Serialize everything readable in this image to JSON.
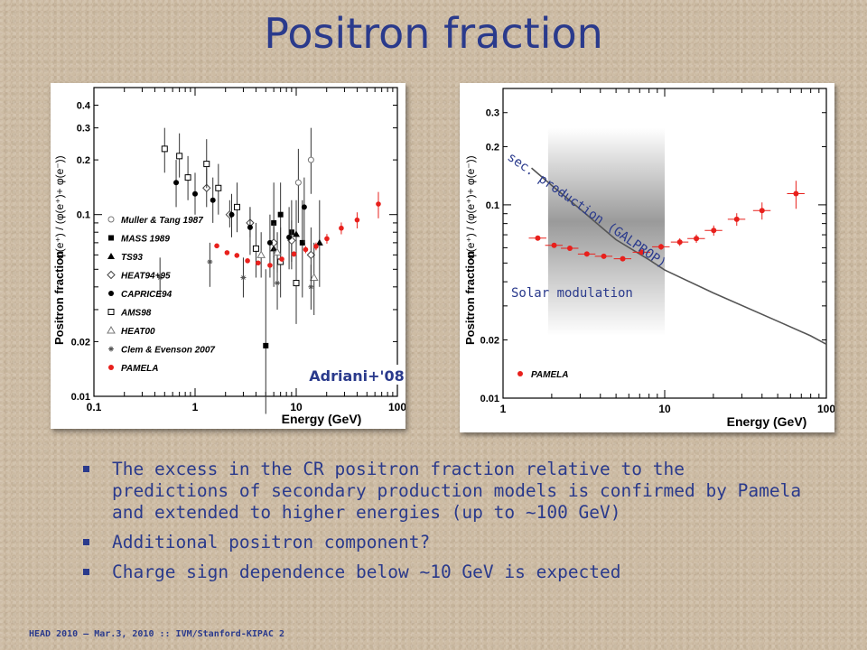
{
  "slide": {
    "title": "Positron fraction",
    "footer": "HEAD 2010 – Mar.3, 2010 :: IVM/Stanford-KIPAC 2",
    "bullets": [
      "The excess in the CR positron fraction relative to the predictions of secondary production models is confirmed by Pamela and extended to higher energies (up to ~100 GeV)",
      "Additional positron component?",
      "Charge sign dependence below ~10 GeV is expected"
    ]
  },
  "chart_data": [
    {
      "type": "scatter",
      "xlabel": "Energy (GeV)",
      "ylabel": "Positron fraction",
      "ylabel_formula": "φ(e⁺) / (φ(e⁺)+ φ(e⁻))",
      "xscale": "log",
      "yscale": "log",
      "xlim": [
        0.1,
        100
      ],
      "ylim": [
        0.01,
        0.5
      ],
      "xticks": [
        "0.1",
        "1",
        "10",
        "100"
      ],
      "yticks": [
        "0.01",
        "0.02",
        "0.1",
        "0.2",
        "0.3",
        "0.4"
      ],
      "annotation": "Adriani+'08",
      "legend_position": "left",
      "series": [
        {
          "name": "Muller & Tang 1987",
          "marker": "open-circle",
          "points": [
            [
              14,
              0.2,
              0.13,
              0.3
            ],
            [
              10.5,
              0.15,
              0.09,
              0.23
            ]
          ]
        },
        {
          "name": "MASS 1989",
          "marker": "filled-square",
          "points": [
            [
              5,
              0.019,
              0.008,
              0.05
            ],
            [
              6,
              0.09,
              0.05,
              0.15
            ],
            [
              7,
              0.1,
              0.06,
              0.15
            ],
            [
              9,
              0.08,
              0.05,
              0.12
            ],
            [
              11.5,
              0.07,
              0.035,
              0.12
            ]
          ]
        },
        {
          "name": "TS93",
          "marker": "filled-triangle",
          "points": [
            [
              6,
              0.065,
              0.04,
              0.09
            ],
            [
              10,
              0.078,
              0.05,
              0.12
            ],
            [
              17,
              0.07,
              0.04,
              0.12
            ]
          ]
        },
        {
          "name": "HEAT94+95",
          "marker": "open-diamond",
          "points": [
            [
              1.3,
              0.14,
              0.11,
              0.18
            ],
            [
              2.2,
              0.1,
              0.085,
              0.12
            ],
            [
              3.5,
              0.09,
              0.075,
              0.11
            ],
            [
              6,
              0.07,
              0.058,
              0.085
            ],
            [
              9,
              0.072,
              0.055,
              0.093
            ],
            [
              14,
              0.06,
              0.043,
              0.085
            ]
          ]
        },
        {
          "name": "CAPRICE94",
          "marker": "filled-circle",
          "points": [
            [
              0.65,
              0.15,
              0.11,
              0.2
            ],
            [
              1.0,
              0.13,
              0.1,
              0.17
            ],
            [
              1.5,
              0.12,
              0.09,
              0.16
            ],
            [
              2.3,
              0.1,
              0.075,
              0.13
            ],
            [
              3.5,
              0.085,
              0.06,
              0.11
            ],
            [
              5.5,
              0.07,
              0.045,
              0.1
            ],
            [
              8.5,
              0.075,
              0.05,
              0.11
            ],
            [
              12,
              0.11,
              0.07,
              0.16
            ]
          ]
        },
        {
          "name": "AMS98",
          "marker": "open-square",
          "points": [
            [
              0.5,
              0.23,
              0.17,
              0.3
            ],
            [
              0.7,
              0.21,
              0.16,
              0.28
            ],
            [
              0.85,
              0.16,
              0.12,
              0.21
            ],
            [
              1.3,
              0.19,
              0.14,
              0.26
            ],
            [
              1.7,
              0.14,
              0.1,
              0.19
            ],
            [
              2.6,
              0.11,
              0.08,
              0.15
            ],
            [
              4,
              0.065,
              0.045,
              0.09
            ],
            [
              7,
              0.055,
              0.035,
              0.085
            ],
            [
              10,
              0.042,
              0.025,
              0.07
            ]
          ]
        },
        {
          "name": "HEAT00",
          "marker": "open-triangle",
          "points": [
            [
              4.5,
              0.06,
              0.045,
              0.08
            ],
            [
              6.5,
              0.062,
              0.048,
              0.08
            ],
            [
              15,
              0.045,
              0.028,
              0.07
            ]
          ]
        },
        {
          "name": "Clem & Evenson 2007",
          "marker": "star",
          "points": [
            [
              0.45,
              0.045,
              0.035,
              0.058
            ],
            [
              1.4,
              0.055,
              0.04,
              0.07
            ],
            [
              3,
              0.045,
              0.035,
              0.058
            ],
            [
              6.5,
              0.042,
              0.03,
              0.055
            ],
            [
              14,
              0.04,
              0.03,
              0.053
            ]
          ]
        },
        {
          "name": "PAMELA",
          "marker": "filled-circle-red",
          "points": [
            [
              1.64,
              0.0673,
              0.0658,
              0.0688
            ],
            [
              2.07,
              0.0617,
              0.0605,
              0.0629
            ],
            [
              2.59,
              0.0596,
              0.0585,
              0.0607
            ],
            [
              3.3,
              0.0557,
              0.0546,
              0.0568
            ],
            [
              4.2,
              0.0542,
              0.0531,
              0.0553
            ],
            [
              5.5,
              0.0526,
              0.0512,
              0.054
            ],
            [
              7.2,
              0.0569,
              0.0551,
              0.0587
            ],
            [
              9.5,
              0.0607,
              0.0585,
              0.0629
            ],
            [
              12.4,
              0.0642,
              0.0613,
              0.0671
            ],
            [
              15.7,
              0.0669,
              0.0636,
              0.0702
            ],
            [
              20.1,
              0.0737,
              0.0692,
              0.0782
            ],
            [
              27.9,
              0.0842,
              0.0779,
              0.0905
            ],
            [
              40.0,
              0.0934,
              0.0839,
              0.1029
            ],
            [
              64.9,
              0.1143,
              0.0954,
              0.1332
            ]
          ]
        }
      ]
    },
    {
      "type": "scatter",
      "xlabel": "Energy (GeV)",
      "ylabel": "Positron fraction",
      "ylabel_formula": "φ(e⁺) / (φ(e⁺)+ φ(e⁻))",
      "xscale": "log",
      "yscale": "log",
      "xlim": [
        1,
        100
      ],
      "ylim": [
        0.01,
        0.4
      ],
      "xticks": [
        "1",
        "10",
        "100"
      ],
      "yticks": [
        "0.01",
        "0.02",
        "0.1",
        "0.2",
        "0.3"
      ],
      "legend_position": "bottom-left",
      "annotations": [
        "sec. production (GALPROP)",
        "Solar modulation"
      ],
      "shaded_region_x": [
        1.9,
        10
      ],
      "series": [
        {
          "name": "PAMELA",
          "marker": "filled-circle-red",
          "points": [
            [
              1.64,
              0.0673,
              0.0658,
              0.0688
            ],
            [
              2.07,
              0.0617,
              0.0605,
              0.0629
            ],
            [
              2.59,
              0.0596,
              0.0585,
              0.0607
            ],
            [
              3.3,
              0.0557,
              0.0546,
              0.0568
            ],
            [
              4.2,
              0.0542,
              0.0531,
              0.0553
            ],
            [
              5.5,
              0.0526,
              0.0512,
              0.054
            ],
            [
              7.2,
              0.0569,
              0.0551,
              0.0587
            ],
            [
              9.5,
              0.0607,
              0.0585,
              0.0629
            ],
            [
              12.4,
              0.0642,
              0.0613,
              0.0671
            ],
            [
              15.7,
              0.0669,
              0.0636,
              0.0702
            ],
            [
              20.1,
              0.0737,
              0.0692,
              0.0782
            ],
            [
              27.9,
              0.0842,
              0.0779,
              0.0905
            ],
            [
              40.0,
              0.0934,
              0.0839,
              0.1029
            ],
            [
              64.9,
              0.1143,
              0.0954,
              0.1332
            ]
          ]
        },
        {
          "name": "secondary production (GALPROP)",
          "type": "line",
          "points": [
            [
              1.5,
              0.155
            ],
            [
              2,
              0.126
            ],
            [
              3,
              0.095
            ],
            [
              5,
              0.066
            ],
            [
              8,
              0.052
            ],
            [
              10,
              0.046
            ],
            [
              20,
              0.035
            ],
            [
              50,
              0.025
            ],
            [
              80,
              0.021
            ],
            [
              100,
              0.019
            ]
          ]
        }
      ]
    }
  ]
}
